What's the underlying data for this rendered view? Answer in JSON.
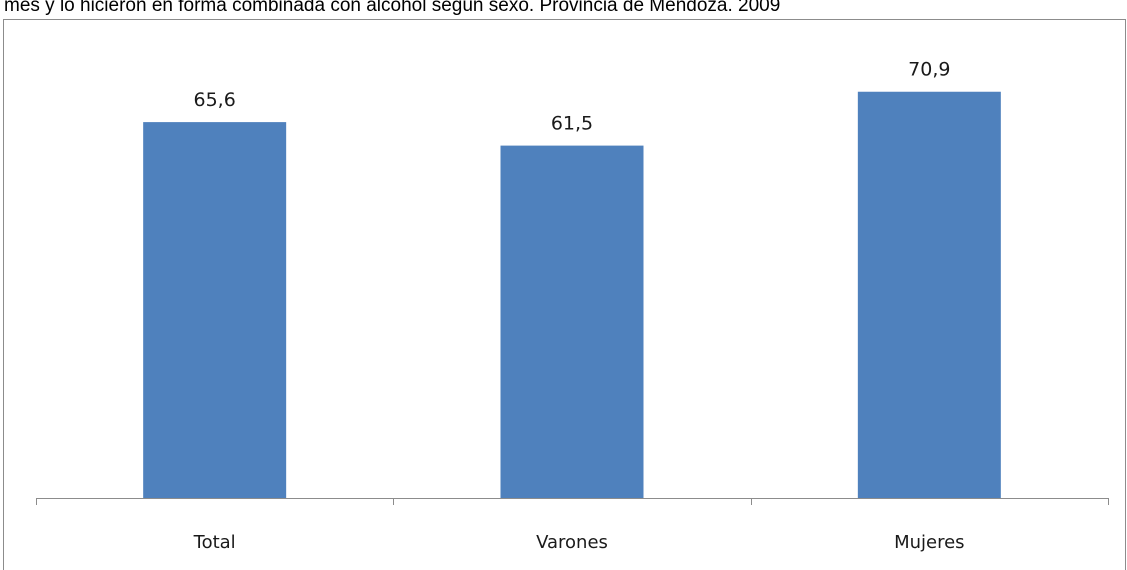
{
  "chart": {
    "title": "mes y lo hicieron en forma combinada con alcohol según sexo. Provincia de Mendoza. 2009"
  },
  "chart_data": {
    "type": "bar",
    "title": "mes y lo hicieron en forma combinada con alcohol según sexo. Provincia de Mendoza. 2009",
    "categories": [
      "Total",
      "Varones",
      "Mujeres"
    ],
    "values": [
      65.6,
      61.5,
      70.9
    ],
    "value_labels": [
      "65,6",
      "61,5",
      "70,9"
    ],
    "xlabel": "",
    "ylabel": "",
    "ylim": [
      0,
      100
    ],
    "y_axis_visible": false,
    "grid": false,
    "legend": "none",
    "bar_color": "#4f81bd",
    "axis_color": "#8c8c8c"
  }
}
